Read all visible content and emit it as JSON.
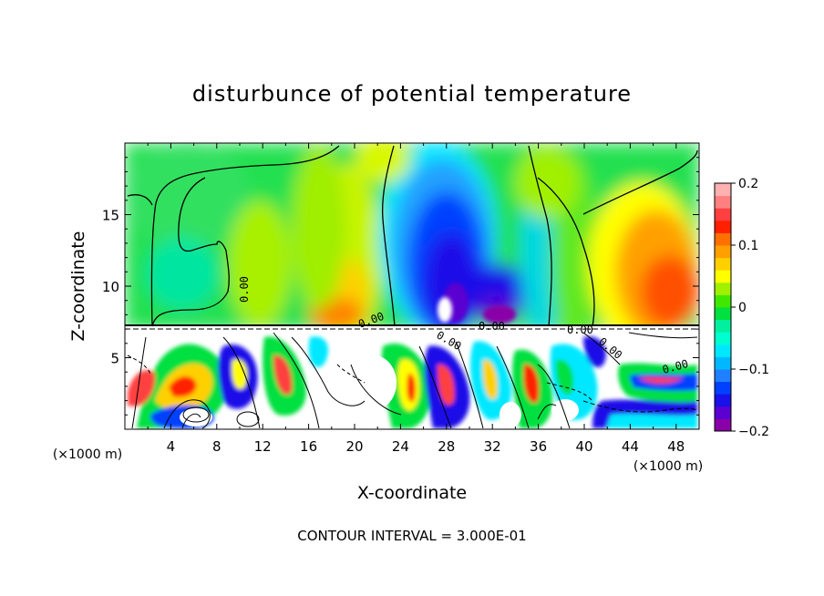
{
  "chart_data": {
    "type": "heatmap",
    "title": "disturbunce of potential temperature",
    "xlabel": "X-coordinate",
    "ylabel": "Z-coordinate",
    "x_unit": "(×1000 m)",
    "y_unit": "(×1000 m)",
    "xlim": [
      0,
      50
    ],
    "ylim": [
      0,
      20
    ],
    "x_ticks": [
      "4",
      "8",
      "12",
      "16",
      "20",
      "24",
      "28",
      "32",
      "36",
      "40",
      "44",
      "48"
    ],
    "y_ticks": [
      "5",
      "10",
      "15"
    ],
    "colorbar": {
      "range": [
        -0.2,
        0.2
      ],
      "tick_labels": [
        "0.2",
        "0.1",
        "0",
        "−0.1",
        "−0.2"
      ],
      "colors": [
        "#8a00a8",
        "#5a00d0",
        "#1a10e8",
        "#0040ff",
        "#2080ff",
        "#00b8ff",
        "#00e8ff",
        "#00ffd0",
        "#00f0a0",
        "#00e040",
        "#40e800",
        "#a0f000",
        "#ffff00",
        "#ffd000",
        "#ffa000",
        "#ff7000",
        "#ff2000",
        "#ff4040",
        "#ff8080",
        "#ffb0b0"
      ]
    },
    "contour_labels": [
      "0.00",
      "0.00",
      "0.00",
      "0.00",
      "0.00",
      "0.00",
      "0.00"
    ],
    "annotation": "CONTOUR INTERVAL = 3.000E-01"
  }
}
